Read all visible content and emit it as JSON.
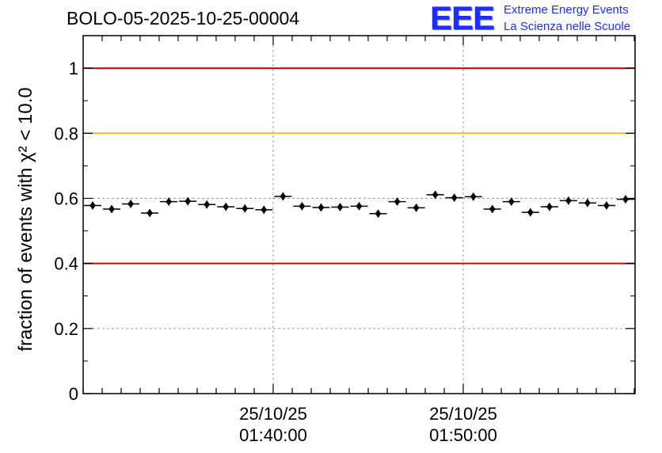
{
  "header": {
    "title": "BOLO-05-2025-10-25-00004",
    "logo_mark": "EEE",
    "logo_line1": "Extreme Energy Events",
    "logo_line2": "La Scienza nelle Scuole"
  },
  "chart_data": {
    "type": "scatter",
    "title": "BOLO-05-2025-10-25-00004",
    "xlabel": "",
    "ylabel": "fraction of events with χ² < 10.0",
    "ylim": [
      0,
      1.1
    ],
    "y_ticks": [
      0,
      0.2,
      0.4,
      0.6,
      0.8,
      1
    ],
    "y_tick_labels": [
      "0",
      "0.2",
      "0.4",
      "0.6",
      "0.8",
      "1"
    ],
    "x_tick_labels": [
      {
        "date": "25/10/25",
        "time": "01:40:00"
      },
      {
        "date": "25/10/25",
        "time": "01:50:00"
      }
    ],
    "grid": true,
    "reference_lines": [
      {
        "y": 1.0,
        "color": "#e00000"
      },
      {
        "y": 0.8,
        "color": "#f2c200"
      },
      {
        "y": 0.4,
        "color": "#e00000"
      }
    ],
    "marker_color": "#000000",
    "series": [
      {
        "values": [
          0.578,
          0.567,
          0.583,
          0.555,
          0.59,
          0.591,
          0.581,
          0.574,
          0.569,
          0.565,
          0.606,
          0.576,
          0.572,
          0.573,
          0.576,
          0.553,
          0.59,
          0.571,
          0.611,
          0.602,
          0.605,
          0.567,
          0.59,
          0.557,
          0.574,
          0.593,
          0.586,
          0.578,
          0.597
        ]
      }
    ]
  }
}
